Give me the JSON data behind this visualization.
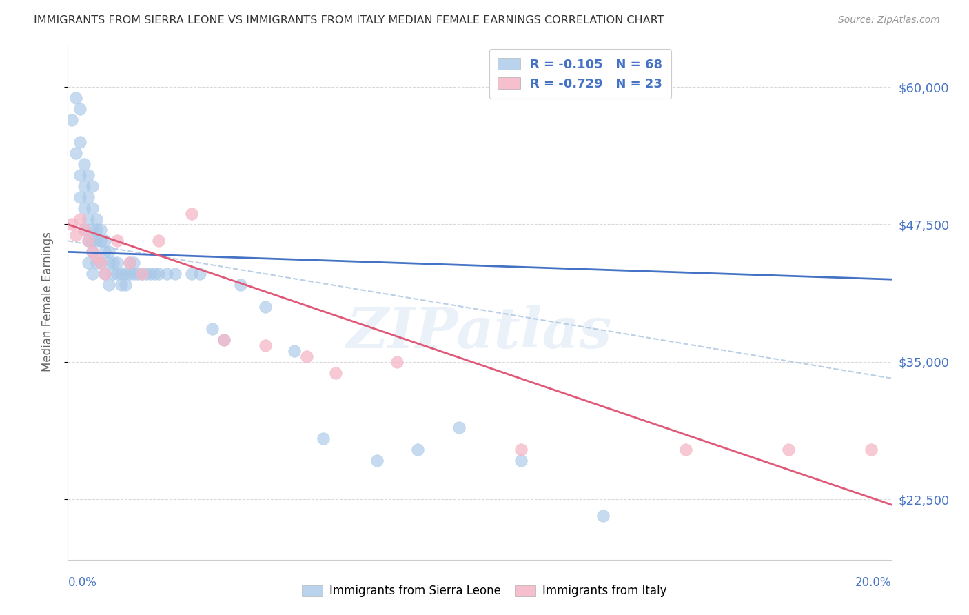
{
  "title": "IMMIGRANTS FROM SIERRA LEONE VS IMMIGRANTS FROM ITALY MEDIAN FEMALE EARNINGS CORRELATION CHART",
  "source": "Source: ZipAtlas.com",
  "ylabel": "Median Female Earnings",
  "yticks": [
    22500,
    35000,
    47500,
    60000
  ],
  "ytick_labels": [
    "$22,500",
    "$35,000",
    "$47,500",
    "$60,000"
  ],
  "xlim": [
    0.0,
    0.2
  ],
  "ylim": [
    17000,
    64000
  ],
  "legend_title_blue": "Immigrants from Sierra Leone",
  "legend_title_pink": "Immigrants from Italy",
  "sl_color": "#a8c8e8",
  "it_color": "#f4b8c8",
  "sl_trend_color": "#4472c4",
  "it_trend_color": "#e05878",
  "watermark": "ZIPatlas",
  "background_color": "#ffffff",
  "grid_color": "#d0d0d0",
  "axis_label_color": "#4472c4",
  "sl_R": "-0.105",
  "sl_N": "68",
  "it_R": "-0.729",
  "it_N": "23",
  "sierra_leone_x": [
    0.001,
    0.002,
    0.002,
    0.003,
    0.003,
    0.003,
    0.003,
    0.004,
    0.004,
    0.004,
    0.004,
    0.005,
    0.005,
    0.005,
    0.005,
    0.005,
    0.006,
    0.006,
    0.006,
    0.006,
    0.006,
    0.006,
    0.007,
    0.007,
    0.007,
    0.007,
    0.008,
    0.008,
    0.008,
    0.009,
    0.009,
    0.009,
    0.01,
    0.01,
    0.01,
    0.011,
    0.011,
    0.012,
    0.012,
    0.013,
    0.013,
    0.014,
    0.014,
    0.015,
    0.015,
    0.016,
    0.016,
    0.017,
    0.018,
    0.019,
    0.02,
    0.021,
    0.022,
    0.024,
    0.026,
    0.03,
    0.032,
    0.035,
    0.038,
    0.042,
    0.048,
    0.055,
    0.062,
    0.075,
    0.085,
    0.095,
    0.11,
    0.13
  ],
  "sierra_leone_y": [
    57000,
    59000,
    54000,
    58000,
    55000,
    52000,
    50000,
    53000,
    51000,
    49000,
    47000,
    52000,
    50000,
    48000,
    46000,
    44000,
    51000,
    49000,
    47000,
    46000,
    45000,
    43000,
    48000,
    47000,
    46000,
    44000,
    47000,
    46000,
    44000,
    46000,
    45000,
    43000,
    45000,
    44000,
    42000,
    44000,
    43000,
    44000,
    43000,
    43000,
    42000,
    43000,
    42000,
    44000,
    43000,
    44000,
    43000,
    43000,
    43000,
    43000,
    43000,
    43000,
    43000,
    43000,
    43000,
    43000,
    43000,
    38000,
    37000,
    42000,
    40000,
    36000,
    28000,
    26000,
    27000,
    29000,
    26000,
    21000
  ],
  "italy_x": [
    0.001,
    0.002,
    0.003,
    0.004,
    0.005,
    0.006,
    0.007,
    0.008,
    0.009,
    0.012,
    0.015,
    0.018,
    0.022,
    0.03,
    0.038,
    0.048,
    0.058,
    0.065,
    0.08,
    0.11,
    0.15,
    0.175,
    0.195
  ],
  "italy_y": [
    47500,
    46500,
    48000,
    47000,
    46000,
    45000,
    44500,
    44000,
    43000,
    46000,
    44000,
    43000,
    46000,
    48500,
    37000,
    36500,
    35500,
    34000,
    35000,
    27000,
    27000,
    27000,
    27000
  ]
}
